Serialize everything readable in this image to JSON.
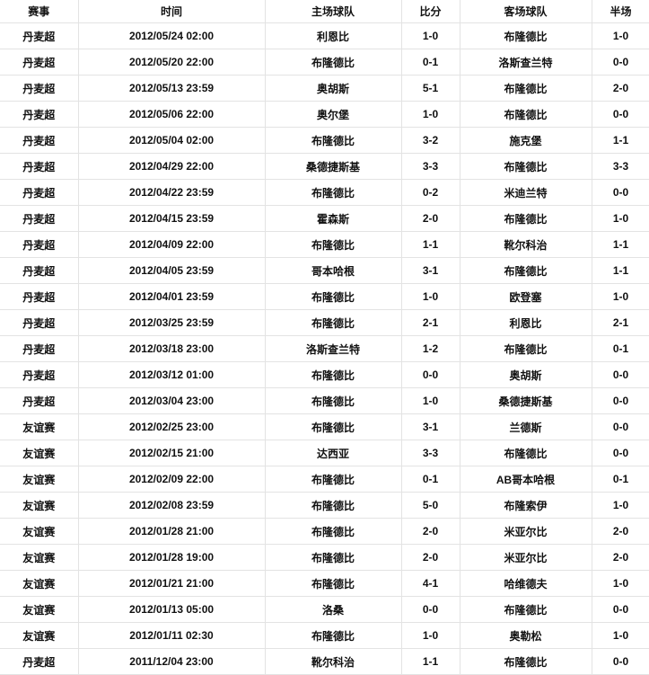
{
  "columns": [
    "赛事",
    "时间",
    "主场球队",
    "比分",
    "客场球队",
    "半场"
  ],
  "rows": [
    [
      "丹麦超",
      "2012/05/24 02:00",
      "利恩比",
      "1-0",
      "布隆德比",
      "1-0"
    ],
    [
      "丹麦超",
      "2012/05/20 22:00",
      "布隆德比",
      "0-1",
      "洛斯查兰特",
      "0-0"
    ],
    [
      "丹麦超",
      "2012/05/13 23:59",
      "奥胡斯",
      "5-1",
      "布隆德比",
      "2-0"
    ],
    [
      "丹麦超",
      "2012/05/06 22:00",
      "奥尔堡",
      "1-0",
      "布隆德比",
      "0-0"
    ],
    [
      "丹麦超",
      "2012/05/04 02:00",
      "布隆德比",
      "3-2",
      "施克堡",
      "1-1"
    ],
    [
      "丹麦超",
      "2012/04/29 22:00",
      "桑德捷斯基",
      "3-3",
      "布隆德比",
      "3-3"
    ],
    [
      "丹麦超",
      "2012/04/22 23:59",
      "布隆德比",
      "0-2",
      "米迪兰特",
      "0-0"
    ],
    [
      "丹麦超",
      "2012/04/15 23:59",
      "霍森斯",
      "2-0",
      "布隆德比",
      "1-0"
    ],
    [
      "丹麦超",
      "2012/04/09 22:00",
      "布隆德比",
      "1-1",
      "靴尔科治",
      "1-1"
    ],
    [
      "丹麦超",
      "2012/04/05 23:59",
      "哥本哈根",
      "3-1",
      "布隆德比",
      "1-1"
    ],
    [
      "丹麦超",
      "2012/04/01 23:59",
      "布隆德比",
      "1-0",
      "欧登塞",
      "1-0"
    ],
    [
      "丹麦超",
      "2012/03/25 23:59",
      "布隆德比",
      "2-1",
      "利恩比",
      "2-1"
    ],
    [
      "丹麦超",
      "2012/03/18 23:00",
      "洛斯查兰特",
      "1-2",
      "布隆德比",
      "0-1"
    ],
    [
      "丹麦超",
      "2012/03/12 01:00",
      "布隆德比",
      "0-0",
      "奥胡斯",
      "0-0"
    ],
    [
      "丹麦超",
      "2012/03/04 23:00",
      "布隆德比",
      "1-0",
      "桑德捷斯基",
      "0-0"
    ],
    [
      "友谊赛",
      "2012/02/25 23:00",
      "布隆德比",
      "3-1",
      "兰德斯",
      "0-0"
    ],
    [
      "友谊赛",
      "2012/02/15 21:00",
      "达西亚",
      "3-3",
      "布隆德比",
      "0-0"
    ],
    [
      "友谊赛",
      "2012/02/09 22:00",
      "布隆德比",
      "0-1",
      "AB哥本哈根",
      "0-1"
    ],
    [
      "友谊赛",
      "2012/02/08 23:59",
      "布隆德比",
      "5-0",
      "布隆索伊",
      "1-0"
    ],
    [
      "友谊赛",
      "2012/01/28 21:00",
      "布隆德比",
      "2-0",
      "米亚尔比",
      "2-0"
    ],
    [
      "友谊赛",
      "2012/01/28 19:00",
      "布隆德比",
      "2-0",
      "米亚尔比",
      "2-0"
    ],
    [
      "友谊赛",
      "2012/01/21 21:00",
      "布隆德比",
      "4-1",
      "哈维德夫",
      "1-0"
    ],
    [
      "友谊赛",
      "2012/01/13 05:00",
      "洛桑",
      "0-0",
      "布隆德比",
      "0-0"
    ],
    [
      "友谊赛",
      "2012/01/11 02:30",
      "布隆德比",
      "1-0",
      "奥勒松",
      "1-0"
    ],
    [
      "丹麦超",
      "2011/12/04 23:00",
      "靴尔科治",
      "1-1",
      "布隆德比",
      "0-0"
    ]
  ]
}
